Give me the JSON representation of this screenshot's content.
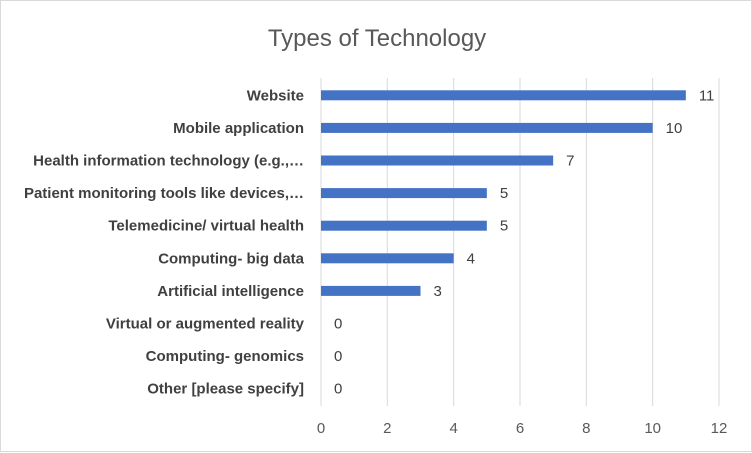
{
  "chart_data": {
    "type": "bar",
    "orientation": "horizontal",
    "title": "Types of Technology",
    "xlabel": "",
    "ylabel": "",
    "categories": [
      "Website",
      "Mobile application",
      "Health information technology (e.g.,…",
      "Patient monitoring tools like devices,…",
      "Telemedicine/ virtual health",
      "Computing- big data",
      "Artificial intelligence",
      "Virtual or augmented reality",
      "Computing- genomics",
      "Other [please specify]"
    ],
    "values": [
      11,
      10,
      7,
      5,
      5,
      4,
      3,
      0,
      0,
      0
    ],
    "xlim": [
      0,
      12
    ],
    "xticks": [
      0,
      2,
      4,
      6,
      8,
      10,
      12
    ],
    "grid": "vertical",
    "legend": "none",
    "bar_color": "#4472C4"
  }
}
